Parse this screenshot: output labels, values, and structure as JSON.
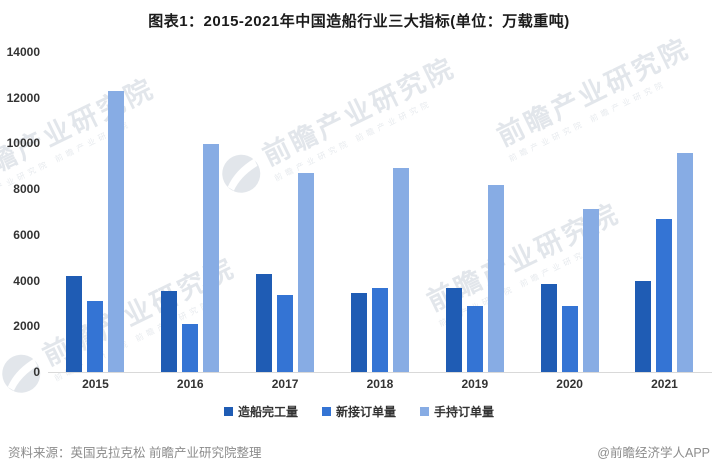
{
  "chart_data": {
    "type": "bar",
    "title": "图表1：2015-2021年中国造船行业三大指标(单位：万载重吨)",
    "categories": [
      "2015",
      "2016",
      "2017",
      "2018",
      "2019",
      "2020",
      "2021"
    ],
    "series": [
      {
        "name": "造船完工量",
        "color": "#1f5cb4",
        "values": [
          4184,
          3532,
          4268,
          3458,
          3672,
          3853,
          3970
        ]
      },
      {
        "name": "新接订单量",
        "color": "#3474d4",
        "values": [
          3126,
          2107,
          3373,
          3667,
          2907,
          2893,
          6707
        ]
      },
      {
        "name": "手持订单量",
        "color": "#87ace4",
        "values": [
          12304,
          9961,
          8723,
          8931,
          8166,
          7111,
          9584
        ]
      }
    ],
    "xlabel": "",
    "ylabel": "",
    "ylim": [
      0,
      14000
    ],
    "ytick_interval": 2000,
    "grid": false,
    "legend_position": "bottom"
  },
  "watermark": {
    "text": "前瞻产业研究院",
    "subtext": "前瞻产业研究院 前瞻产业研究院",
    "color": "#ccd3db"
  },
  "footer": {
    "source_left": "资料来源：英国克拉克松 前瞻产业研究院整理",
    "source_right": "@前瞻经济学人APP"
  },
  "colors": {
    "axis_line": "#d9d9d9",
    "tick_text": "#333333",
    "title_text": "#1a1a1a",
    "footer_text": "#8c8c8c"
  }
}
